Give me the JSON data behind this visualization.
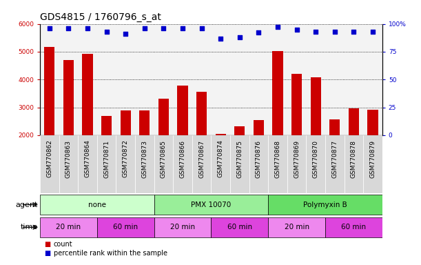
{
  "title": "GDS4815 / 1760796_s_at",
  "samples": [
    "GSM770862",
    "GSM770863",
    "GSM770864",
    "GSM770871",
    "GSM770872",
    "GSM770873",
    "GSM770865",
    "GSM770866",
    "GSM770867",
    "GSM770874",
    "GSM770875",
    "GSM770876",
    "GSM770868",
    "GSM770869",
    "GSM770870",
    "GSM770877",
    "GSM770878",
    "GSM770879"
  ],
  "counts": [
    5180,
    4700,
    4920,
    2680,
    2900,
    2900,
    3320,
    3770,
    3550,
    2050,
    2320,
    2540,
    5010,
    4200,
    4080,
    2560,
    2960,
    2910
  ],
  "percentiles": [
    96,
    96,
    96,
    93,
    91,
    96,
    96,
    96,
    96,
    87,
    88,
    92,
    97,
    95,
    93,
    93,
    93,
    93
  ],
  "bar_color": "#cc0000",
  "dot_color": "#0000cc",
  "ylim_left": [
    2000,
    6000
  ],
  "ylim_right": [
    0,
    100
  ],
  "yticks_left": [
    2000,
    3000,
    4000,
    5000,
    6000
  ],
  "yticks_right": [
    0,
    25,
    50,
    75,
    100
  ],
  "agent_groups": [
    {
      "label": "none",
      "start": 0,
      "end": 6,
      "color": "#ccffcc"
    },
    {
      "label": "PMX 10070",
      "start": 6,
      "end": 12,
      "color": "#99ee99"
    },
    {
      "label": "Polymyxin B",
      "start": 12,
      "end": 18,
      "color": "#66dd66"
    }
  ],
  "time_groups": [
    {
      "label": "20 min",
      "start": 0,
      "end": 3,
      "color": "#ee88ee"
    },
    {
      "label": "60 min",
      "start": 3,
      "end": 6,
      "color": "#dd44dd"
    },
    {
      "label": "20 min",
      "start": 6,
      "end": 9,
      "color": "#ee88ee"
    },
    {
      "label": "60 min",
      "start": 9,
      "end": 12,
      "color": "#dd44dd"
    },
    {
      "label": "20 min",
      "start": 12,
      "end": 15,
      "color": "#ee88ee"
    },
    {
      "label": "60 min",
      "start": 15,
      "end": 18,
      "color": "#dd44dd"
    }
  ],
  "legend_count_color": "#cc0000",
  "legend_dot_color": "#0000cc",
  "grid_color": "#000000",
  "title_fontsize": 10,
  "tick_fontsize": 6.5,
  "label_fontsize": 8
}
